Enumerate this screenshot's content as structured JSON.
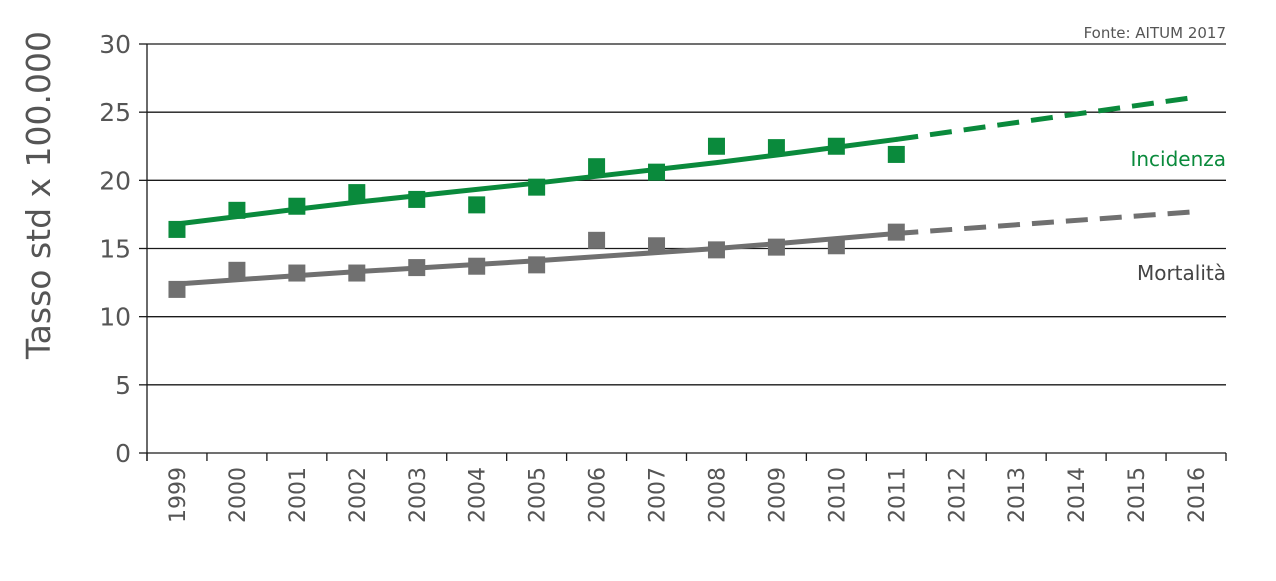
{
  "chart_data": {
    "type": "scatter",
    "source": "Fonte: AITUM 2017",
    "ylabel": "Tasso std x 100.000",
    "ylim": [
      0,
      30
    ],
    "yticks": [
      0,
      5,
      10,
      15,
      20,
      25,
      30
    ],
    "x": [
      "1999",
      "2000",
      "2001",
      "2002",
      "2003",
      "2004",
      "2005",
      "2006",
      "2007",
      "2008",
      "2009",
      "2010",
      "2011",
      "2012",
      "2013",
      "2014",
      "2015",
      "2016"
    ],
    "grid": "horizontal",
    "series": [
      {
        "name": "Incidenza",
        "color": "#0a8a3c",
        "points": [
          {
            "x": "1999",
            "y": 16.4
          },
          {
            "x": "2000",
            "y": 17.8
          },
          {
            "x": "2001",
            "y": 18.1
          },
          {
            "x": "2002",
            "y": 19.1
          },
          {
            "x": "2003",
            "y": 18.6
          },
          {
            "x": "2004",
            "y": 18.2
          },
          {
            "x": "2005",
            "y": 19.5
          },
          {
            "x": "2006",
            "y": 21.0
          },
          {
            "x": "2007",
            "y": 20.6
          },
          {
            "x": "2008",
            "y": 22.5
          },
          {
            "x": "2009",
            "y": 22.4
          },
          {
            "x": "2010",
            "y": 22.5
          },
          {
            "x": "2011",
            "y": 21.9
          }
        ],
        "trend": [
          {
            "x": "1999",
            "y": 16.8
          },
          {
            "x": "2002",
            "y": 18.4
          },
          {
            "x": "2005",
            "y": 19.8
          },
          {
            "x": "2008",
            "y": 21.3
          },
          {
            "x": "2011",
            "y": 23.0
          }
        ],
        "projection": [
          {
            "x": "2011",
            "y": 23.0
          },
          {
            "x": "2016",
            "y": 26.1
          }
        ]
      },
      {
        "name": "Mortalità",
        "color": "#707070",
        "points": [
          {
            "x": "1999",
            "y": 12.0
          },
          {
            "x": "2000",
            "y": 13.4
          },
          {
            "x": "2001",
            "y": 13.2
          },
          {
            "x": "2002",
            "y": 13.2
          },
          {
            "x": "2003",
            "y": 13.6
          },
          {
            "x": "2004",
            "y": 13.7
          },
          {
            "x": "2005",
            "y": 13.8
          },
          {
            "x": "2006",
            "y": 15.6
          },
          {
            "x": "2007",
            "y": 15.2
          },
          {
            "x": "2008",
            "y": 14.9
          },
          {
            "x": "2009",
            "y": 15.1
          },
          {
            "x": "2010",
            "y": 15.2
          },
          {
            "x": "2011",
            "y": 16.2
          }
        ],
        "trend": [
          {
            "x": "1999",
            "y": 12.4
          },
          {
            "x": "2002",
            "y": 13.3
          },
          {
            "x": "2005",
            "y": 14.1
          },
          {
            "x": "2008",
            "y": 15.0
          },
          {
            "x": "2011",
            "y": 16.1
          }
        ],
        "projection": [
          {
            "x": "2011",
            "y": 16.1
          },
          {
            "x": "2016",
            "y": 17.7
          }
        ]
      }
    ]
  }
}
